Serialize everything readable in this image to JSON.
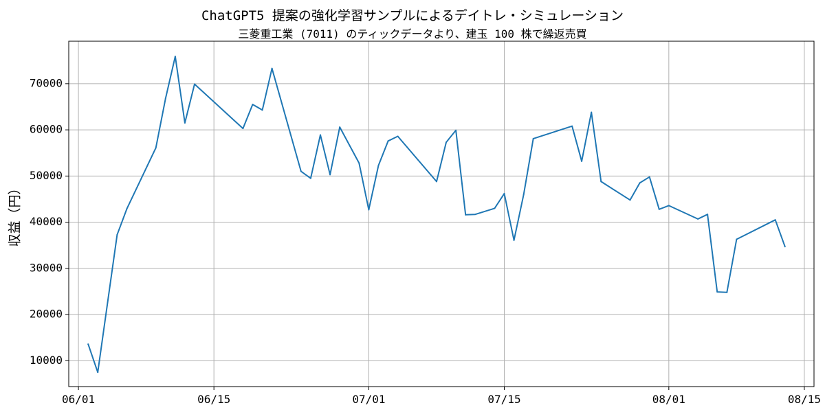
{
  "chart_data": {
    "type": "line",
    "title": "ChatGPT5 提案の強化学習サンプルによるデイトレ・シミュレーション",
    "subtitle": "三菱重工業 (7011) のティックデータより、建玉 100 株で繰返売買",
    "xlabel": "",
    "ylabel": "収益（円）",
    "xlim": [
      "2025-05-31",
      "2025-08-16"
    ],
    "ylim": [
      4400,
      79200
    ],
    "x_ticks": [
      {
        "date": "2025-06-01",
        "label": "06/01"
      },
      {
        "date": "2025-06-15",
        "label": "06/15"
      },
      {
        "date": "2025-07-01",
        "label": "07/01"
      },
      {
        "date": "2025-07-15",
        "label": "07/15"
      },
      {
        "date": "2025-08-01",
        "label": "08/01"
      },
      {
        "date": "2025-08-15",
        "label": "08/15"
      }
    ],
    "y_ticks": [
      10000,
      20000,
      30000,
      40000,
      50000,
      60000,
      70000
    ],
    "grid": true,
    "color": "#1f77b4",
    "series": [
      {
        "x": [
          "2025-06-02",
          "2025-06-03",
          "2025-06-05",
          "2025-06-06",
          "2025-06-09",
          "2025-06-10",
          "2025-06-11",
          "2025-06-12",
          "2025-06-13",
          "2025-06-18",
          "2025-06-19",
          "2025-06-20",
          "2025-06-21",
          "2025-06-24",
          "2025-06-25",
          "2025-06-26",
          "2025-06-27",
          "2025-06-28",
          "2025-06-30",
          "2025-07-01",
          "2025-07-02",
          "2025-07-03",
          "2025-07-04",
          "2025-07-08",
          "2025-07-09",
          "2025-07-10",
          "2025-07-11",
          "2025-07-12",
          "2025-07-14",
          "2025-07-15",
          "2025-07-16",
          "2025-07-17",
          "2025-07-18",
          "2025-07-22",
          "2025-07-23",
          "2025-07-24",
          "2025-07-25",
          "2025-07-28",
          "2025-07-29",
          "2025-07-30",
          "2025-07-31",
          "2025-08-01",
          "2025-08-04",
          "2025-08-05",
          "2025-08-06",
          "2025-08-07",
          "2025-08-08",
          "2025-08-12",
          "2025-08-13"
        ],
        "values": [
          13600,
          7500,
          37300,
          42900,
          56100,
          66800,
          75900,
          61500,
          69900,
          60300,
          65500,
          64300,
          73300,
          51000,
          49500,
          58900,
          50300,
          60600,
          52800,
          42700,
          52300,
          57600,
          58600,
          48800,
          57300,
          59900,
          41600,
          41700,
          43000,
          46200,
          36100,
          46000,
          58100,
          60800,
          53200,
          63800,
          48800,
          44800,
          48500,
          49800,
          42800,
          43600,
          40700,
          41700,
          24900,
          24800,
          36300,
          40500,
          34700
        ]
      }
    ]
  }
}
